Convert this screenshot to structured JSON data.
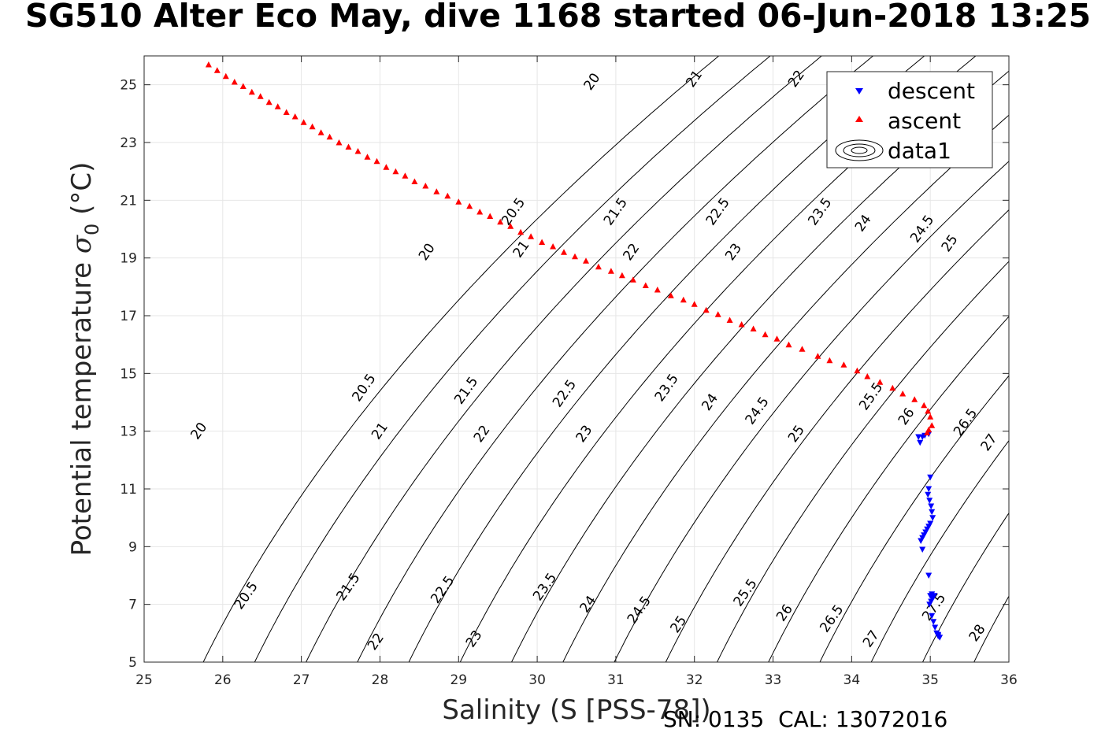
{
  "title": "SG510 Alter Eco May, dive 1168 started 06-Jun-2018 13:25",
  "footer": "SN: 0135  CAL: 13072016",
  "chart_data": {
    "type": "scatter",
    "title": "SG510 Alter Eco May, dive 1168 started 06-Jun-2018 13:25",
    "xlabel": "Salinity (S [PSS-78])",
    "ylabel_main": "Potential temperature ",
    "ylabel_sigma": "σ",
    "ylabel_sub": "0",
    "ylabel_unit": " (°C)",
    "xlim": [
      25,
      36
    ],
    "ylim": [
      5,
      26
    ],
    "xticks": [
      25,
      26,
      27,
      28,
      29,
      30,
      31,
      32,
      33,
      34,
      35,
      36
    ],
    "yticks": [
      5,
      7,
      9,
      11,
      13,
      15,
      17,
      19,
      21,
      23,
      25
    ],
    "grid": true,
    "legend_position": "top-right",
    "legend": [
      "descent",
      "ascent",
      "data1"
    ],
    "colors": {
      "descent": "#0000ff",
      "ascent": "#ff0000",
      "contour": "#000000",
      "grid": "#e6e6e6"
    },
    "contour_levels": [
      20,
      20.5,
      21,
      21.5,
      22,
      22.5,
      23,
      23.5,
      24,
      24.5,
      25,
      25.5,
      26,
      26.5,
      27,
      27.5,
      28
    ],
    "contour_labels": [
      {
        "text": "20",
        "x": 25.7,
        "y": 13.0
      },
      {
        "text": "20",
        "x": 28.6,
        "y": 19.2
      },
      {
        "text": "20",
        "x": 30.7,
        "y": 25.1
      },
      {
        "text": "20.5",
        "x": 26.3,
        "y": 7.3
      },
      {
        "text": "20.5",
        "x": 27.8,
        "y": 14.5
      },
      {
        "text": "20.5",
        "x": 29.7,
        "y": 20.6
      },
      {
        "text": "21",
        "x": 28.0,
        "y": 13.0
      },
      {
        "text": "21",
        "x": 29.8,
        "y": 19.3
      },
      {
        "text": "21",
        "x": 32.0,
        "y": 25.2
      },
      {
        "text": "21.5",
        "x": 27.6,
        "y": 7.6
      },
      {
        "text": "21.5",
        "x": 29.1,
        "y": 14.4
      },
      {
        "text": "21.5",
        "x": 31.0,
        "y": 20.6
      },
      {
        "text": "22",
        "x": 27.95,
        "y": 5.7
      },
      {
        "text": "22",
        "x": 29.3,
        "y": 12.9
      },
      {
        "text": "22",
        "x": 31.2,
        "y": 19.2
      },
      {
        "text": "22",
        "x": 33.3,
        "y": 25.2
      },
      {
        "text": "22.5",
        "x": 28.8,
        "y": 7.5
      },
      {
        "text": "22.5",
        "x": 30.35,
        "y": 14.3
      },
      {
        "text": "22.5",
        "x": 32.3,
        "y": 20.6
      },
      {
        "text": "23",
        "x": 29.2,
        "y": 5.8
      },
      {
        "text": "23",
        "x": 30.6,
        "y": 12.9
      },
      {
        "text": "23",
        "x": 32.5,
        "y": 19.2
      },
      {
        "text": "23.5",
        "x": 30.1,
        "y": 7.6
      },
      {
        "text": "23.5",
        "x": 31.65,
        "y": 14.5
      },
      {
        "text": "23.5",
        "x": 33.6,
        "y": 20.6
      },
      {
        "text": "24",
        "x": 30.65,
        "y": 7.0
      },
      {
        "text": "24",
        "x": 32.2,
        "y": 14.0
      },
      {
        "text": "24",
        "x": 34.15,
        "y": 20.2
      },
      {
        "text": "24.5",
        "x": 31.3,
        "y": 6.8
      },
      {
        "text": "24.5",
        "x": 32.8,
        "y": 13.7
      },
      {
        "text": "24.5",
        "x": 34.9,
        "y": 20.0
      },
      {
        "text": "25",
        "x": 31.8,
        "y": 6.3
      },
      {
        "text": "25",
        "x": 33.3,
        "y": 12.9
      },
      {
        "text": "25",
        "x": 35.25,
        "y": 19.5
      },
      {
        "text": "25.5",
        "x": 32.65,
        "y": 7.4
      },
      {
        "text": "25.5",
        "x": 34.25,
        "y": 14.2
      },
      {
        "text": "26",
        "x": 33.15,
        "y": 6.7
      },
      {
        "text": "26",
        "x": 34.7,
        "y": 13.5
      },
      {
        "text": "26.5",
        "x": 33.75,
        "y": 6.5
      },
      {
        "text": "26.5",
        "x": 35.45,
        "y": 13.3
      },
      {
        "text": "27",
        "x": 34.25,
        "y": 5.8
      },
      {
        "text": "27",
        "x": 35.75,
        "y": 12.6
      },
      {
        "text": "27.5",
        "x": 35.05,
        "y": 6.9
      },
      {
        "text": "28",
        "x": 35.6,
        "y": 6.0
      }
    ],
    "series": [
      {
        "name": "descent",
        "marker": "triangle-down",
        "x": [
          34.85,
          34.87,
          34.9,
          34.93,
          34.98,
          35.0,
          34.98,
          34.97,
          34.99,
          35.01,
          35.02,
          35.03,
          35.0,
          34.98,
          34.96,
          34.94,
          34.92,
          34.9,
          34.88,
          34.9,
          34.98,
          35.0,
          35.02,
          35.05,
          35.03,
          35.01,
          34.99,
          35.02,
          35.04,
          35.06,
          35.08,
          35.1,
          35.1,
          35.12
        ],
        "y": [
          12.8,
          12.6,
          12.8,
          12.85,
          12.9,
          11.4,
          11.0,
          10.8,
          10.6,
          10.4,
          10.2,
          10.0,
          9.8,
          9.7,
          9.6,
          9.5,
          9.4,
          9.3,
          9.2,
          8.9,
          8.0,
          7.3,
          7.35,
          7.3,
          7.2,
          7.1,
          7.0,
          6.6,
          6.4,
          6.2,
          6.0,
          5.95,
          5.9,
          5.85
        ]
      },
      {
        "name": "ascent",
        "marker": "triangle-up",
        "x": [
          25.82,
          25.93,
          26.04,
          26.15,
          26.26,
          26.37,
          26.48,
          26.59,
          26.7,
          26.81,
          26.92,
          27.03,
          27.14,
          27.25,
          27.36,
          27.48,
          27.6,
          27.72,
          27.84,
          27.96,
          28.08,
          28.2,
          28.32,
          28.44,
          28.58,
          28.72,
          28.86,
          29.0,
          29.14,
          29.27,
          29.4,
          29.53,
          29.66,
          29.79,
          29.92,
          30.06,
          30.2,
          30.34,
          30.48,
          30.62,
          30.78,
          30.94,
          31.08,
          31.22,
          31.38,
          31.53,
          31.7,
          31.86,
          32.0,
          32.15,
          32.3,
          32.45,
          32.6,
          32.75,
          32.9,
          33.05,
          33.2,
          33.37,
          33.57,
          33.72,
          33.9,
          34.07,
          34.2,
          34.36,
          34.52,
          34.65,
          34.8,
          34.92,
          34.97,
          35.0,
          35.02,
          34.98,
          34.96
        ],
        "y": [
          25.7,
          25.5,
          25.3,
          25.1,
          24.95,
          24.75,
          24.6,
          24.4,
          24.25,
          24.05,
          23.9,
          23.7,
          23.55,
          23.35,
          23.2,
          23.0,
          22.85,
          22.7,
          22.5,
          22.35,
          22.15,
          22.0,
          21.85,
          21.65,
          21.5,
          21.3,
          21.15,
          20.95,
          20.8,
          20.6,
          20.45,
          20.25,
          20.1,
          19.9,
          19.75,
          19.55,
          19.4,
          19.2,
          19.05,
          18.9,
          18.7,
          18.55,
          18.4,
          18.25,
          18.05,
          17.9,
          17.7,
          17.55,
          17.4,
          17.2,
          17.05,
          16.85,
          16.7,
          16.55,
          16.35,
          16.2,
          16.0,
          15.85,
          15.6,
          15.45,
          15.3,
          15.1,
          14.9,
          14.7,
          14.5,
          14.3,
          14.1,
          13.9,
          13.7,
          13.5,
          13.2,
          13.05,
          12.95
        ]
      }
    ]
  }
}
